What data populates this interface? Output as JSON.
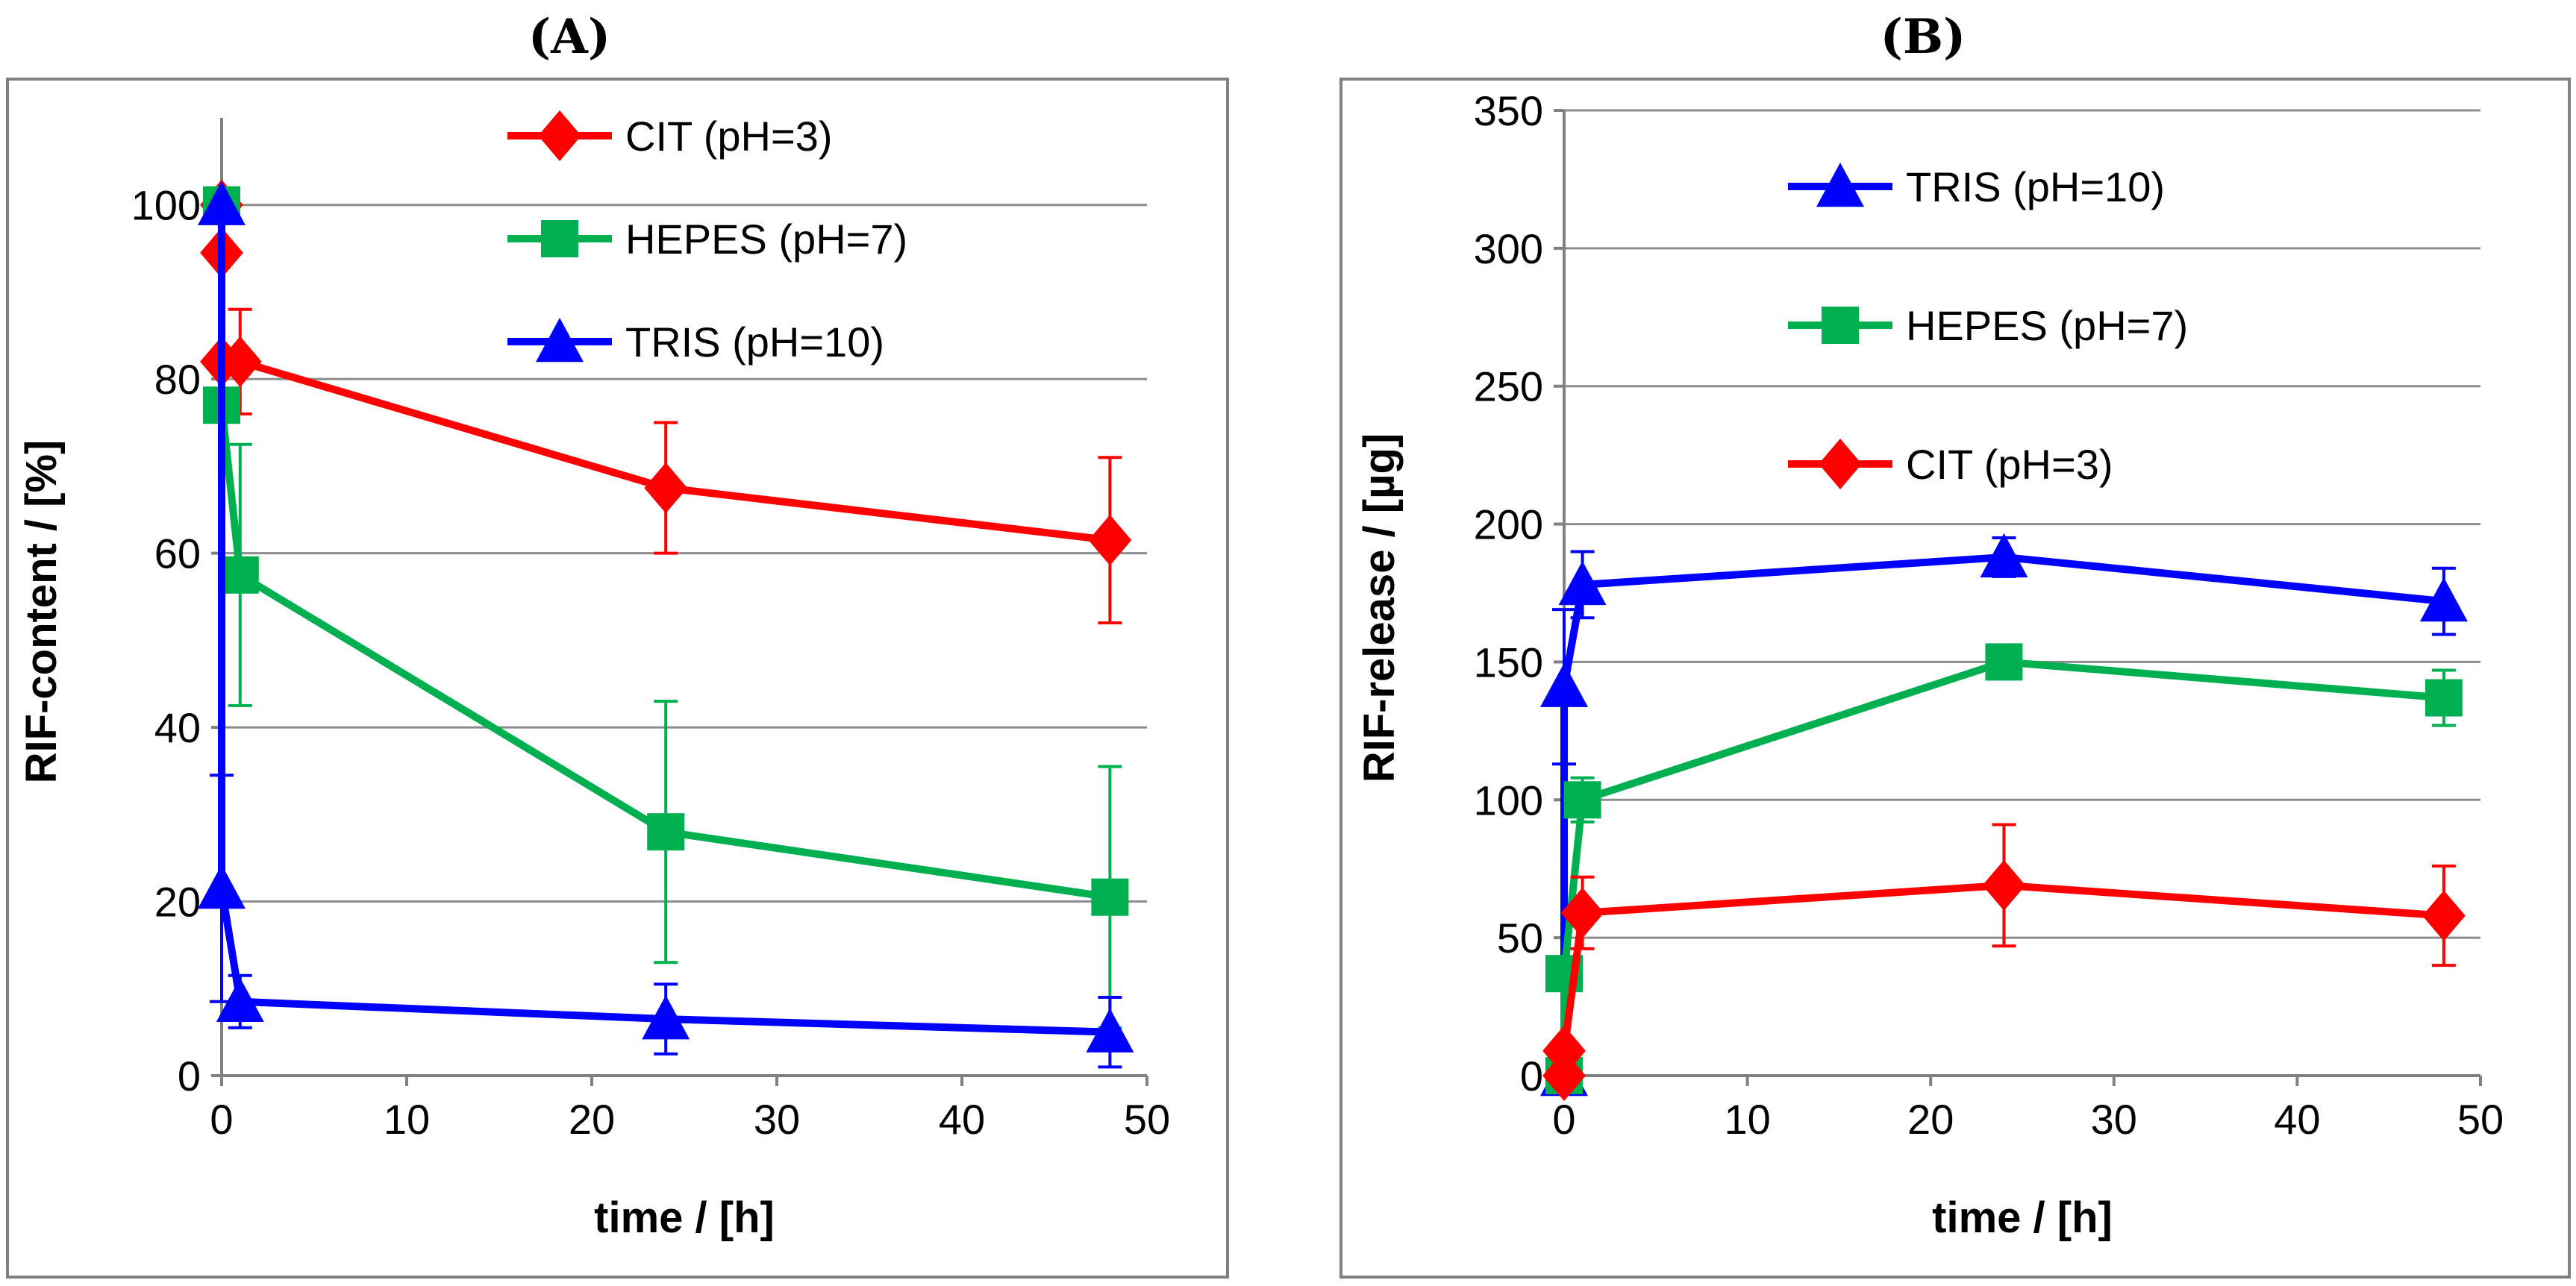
{
  "chart_data": [
    {
      "id": "A",
      "type": "line",
      "title": "(A)",
      "xlabel": "time / [h]",
      "ylabel": "RIF-content / [%]",
      "xlim": [
        0,
        50
      ],
      "ylim": [
        0,
        110
      ],
      "xticks": [
        0,
        10,
        20,
        30,
        40,
        50
      ],
      "yticks": [
        0,
        20,
        40,
        60,
        80,
        100
      ],
      "grid": "horizontal",
      "legend_position": "top-right",
      "series": [
        {
          "name": "CIT (pH=3)",
          "color": "#ff0000",
          "marker": "diamond",
          "x": [
            0,
            0,
            0,
            1,
            24,
            48
          ],
          "y": [
            100,
            94.5,
            82,
            82,
            67.5,
            61.5
          ],
          "err": [
            0,
            0,
            0,
            6,
            7.5,
            9.5
          ]
        },
        {
          "name": "HEPES (pH=7)",
          "color": "#00b050",
          "marker": "square",
          "x": [
            0,
            0,
            1,
            24,
            48
          ],
          "y": [
            100,
            77,
            57.5,
            28,
            20.5
          ],
          "err": [
            0,
            0,
            15,
            15,
            15
          ]
        },
        {
          "name": "TRIS (pH=10)",
          "color": "#0000ff",
          "marker": "triangle",
          "x": [
            0,
            0,
            1,
            24,
            48
          ],
          "y": [
            100,
            21.5,
            8.5,
            6.5,
            5
          ],
          "err": [
            0,
            13,
            3,
            4,
            4
          ]
        }
      ]
    },
    {
      "id": "B",
      "type": "line",
      "title": "(B)",
      "xlabel": "time / [h]",
      "ylabel": "RIF-release / [µg]",
      "xlim": [
        0,
        50
      ],
      "ylim": [
        0,
        350
      ],
      "xticks": [
        0,
        10,
        20,
        30,
        40,
        50
      ],
      "yticks": [
        0,
        50,
        100,
        150,
        200,
        250,
        300,
        350
      ],
      "grid": "horizontal",
      "legend_position": "top-right",
      "series": [
        {
          "name": "TRIS (pH=10)",
          "color": "#0000ff",
          "marker": "triangle",
          "x": [
            0,
            0,
            1,
            24,
            48
          ],
          "y": [
            0,
            141,
            178,
            188,
            172
          ],
          "err": [
            0,
            28,
            12,
            7,
            12
          ]
        },
        {
          "name": "HEPES (pH=7)",
          "color": "#00b050",
          "marker": "square",
          "x": [
            0,
            0,
            1,
            24,
            48
          ],
          "y": [
            0,
            37,
            100,
            150,
            137
          ],
          "err": [
            0,
            0,
            8,
            5,
            10
          ]
        },
        {
          "name": "CIT (pH=3)",
          "color": "#ff0000",
          "marker": "diamond",
          "x": [
            0,
            0,
            1,
            24,
            48
          ],
          "y": [
            0,
            9,
            59,
            69,
            58
          ],
          "err": [
            0,
            0,
            13,
            22,
            18
          ]
        }
      ]
    }
  ]
}
